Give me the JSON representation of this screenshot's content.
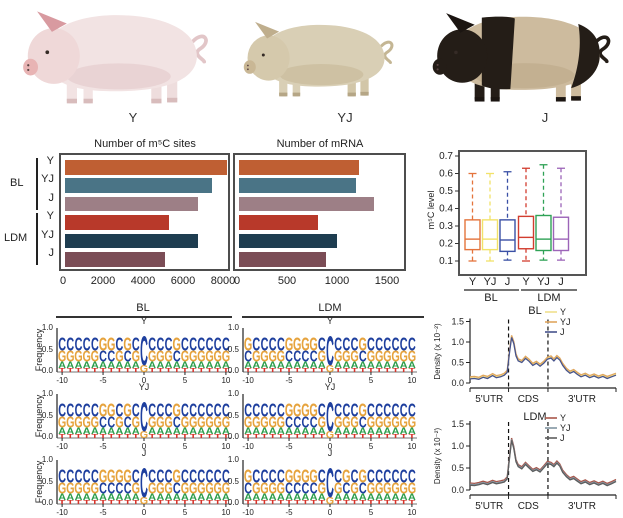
{
  "pigs": {
    "items": [
      {
        "label": "Y",
        "colors": {
          "body": "#f2e3e3",
          "head": "#efd8d8",
          "shade": "#e2c6c8",
          "ear": "#d89aa0",
          "snout": "#e8b4b4",
          "legs_front": "#f2e3e3",
          "legs_rear": "#eedddd",
          "hoof": "#d8bcbc",
          "tail": "#e2c6c8",
          "patched": false
        }
      },
      {
        "label": "YJ",
        "colors": {
          "body": "#d9cfb5",
          "head": "#d5c9ac",
          "shade": "#c4b694",
          "ear": "#bfae8d",
          "snout": "#c9b795",
          "legs_front": "#d9cfb5",
          "legs_rear": "#d2c6a8",
          "hoof": "#b5a686",
          "tail": "#c4b694",
          "patched": false
        }
      },
      {
        "label": "J",
        "colors": {
          "body": "#cdbb9e",
          "head": "#241d17",
          "shade": "#bca887",
          "ear": "#1b1511",
          "snout": "#241d17",
          "legs_front": "#241d17",
          "legs_rear": "#cdbb9e",
          "hoof": "#1b1511",
          "tail": "#241d17",
          "patched": true,
          "patch": "#241d17"
        }
      }
    ]
  },
  "bar_panel": {
    "group_labels": [
      "BL",
      "LDM"
    ],
    "row_labels": [
      "Y",
      "YJ",
      "J"
    ]
  },
  "chart_data": [
    {
      "id": "m5c_sites",
      "type": "bar",
      "orientation": "horizontal",
      "title": "Number of m⁵C sites",
      "groups": [
        "BL",
        "LDM"
      ],
      "categories": [
        "Y",
        "YJ",
        "J",
        "Y",
        "YJ",
        "J"
      ],
      "values": [
        8100,
        7350,
        6650,
        5200,
        6650,
        5000
      ],
      "xlim": [
        0,
        8800
      ],
      "xticks": [
        0,
        2000,
        4000,
        6000,
        8000
      ],
      "bar_colors": [
        "#bf5f33",
        "#4a7486",
        "#9d7f86",
        "#b8392a",
        "#1e3d50",
        "#7b4d56"
      ]
    },
    {
      "id": "mrna",
      "type": "bar",
      "orientation": "horizontal",
      "title": "Number of mRNA",
      "groups": [
        "BL",
        "LDM"
      ],
      "categories": [
        "Y",
        "YJ",
        "J",
        "Y",
        "YJ",
        "J"
      ],
      "values": [
        1200,
        1170,
        1350,
        790,
        980,
        870
      ],
      "xlim": [
        0,
        1600
      ],
      "xticks": [
        0,
        500,
        1000,
        1500
      ],
      "bar_colors": [
        "#bf5f33",
        "#4a7486",
        "#9d7f86",
        "#b8392a",
        "#1e3d50",
        "#7b4d56"
      ]
    },
    {
      "id": "m5c_level",
      "type": "boxplot",
      "ylabel": "m⁵C level",
      "ylim": [
        0.1,
        0.7
      ],
      "yticks": [
        "0.7",
        "0.6",
        "0.5",
        "0.4",
        "0.3",
        "0.2",
        "0.1"
      ],
      "groups": [
        "BL",
        "LDM"
      ],
      "boxes": [
        {
          "group": "BL",
          "label": "Y",
          "color": "#e4743c",
          "lo": 0.1,
          "q1": 0.165,
          "med": 0.225,
          "q3": 0.335,
          "hi": 0.6
        },
        {
          "group": "BL",
          "label": "YJ",
          "color": "#f2e269",
          "lo": 0.1,
          "q1": 0.165,
          "med": 0.225,
          "q3": 0.335,
          "hi": 0.6
        },
        {
          "group": "BL",
          "label": "J",
          "color": "#3a50a5",
          "lo": 0.105,
          "q1": 0.155,
          "med": 0.22,
          "q3": 0.335,
          "hi": 0.61
        },
        {
          "group": "LDM",
          "label": "Y",
          "color": "#d23d2f",
          "lo": 0.1,
          "q1": 0.17,
          "med": 0.235,
          "q3": 0.355,
          "hi": 0.63
        },
        {
          "group": "LDM",
          "label": "YJ",
          "color": "#2fa256",
          "lo": 0.105,
          "q1": 0.16,
          "med": 0.225,
          "q3": 0.36,
          "hi": 0.65
        },
        {
          "group": "LDM",
          "label": "J",
          "color": "#9c64b8",
          "lo": 0.105,
          "q1": 0.16,
          "med": 0.225,
          "q3": 0.35,
          "hi": 0.63
        }
      ]
    },
    {
      "id": "density_bl",
      "type": "line",
      "title": "BL",
      "ylabel": "Density (x 10⁻²)",
      "yticks": [
        "0.0",
        "0.5",
        "1.0",
        "1.5"
      ],
      "regions": [
        "5'UTR",
        "CDS",
        "3'UTR"
      ],
      "boundaries": [
        0.264,
        0.534
      ],
      "series": [
        {
          "name": "Y",
          "color": "#f0df8e",
          "offset": 0
        },
        {
          "name": "YJ",
          "color": "#e0a75f",
          "offset": 0.03
        },
        {
          "name": "J",
          "color": "#46538c",
          "offset": -0.02
        }
      ],
      "points": [
        [
          0,
          0.12
        ],
        [
          0.03,
          0.13
        ],
        [
          0.06,
          0.11
        ],
        [
          0.09,
          0.16
        ],
        [
          0.12,
          0.13
        ],
        [
          0.155,
          0.2
        ],
        [
          0.18,
          0.15
        ],
        [
          0.21,
          0.17
        ],
        [
          0.235,
          0.21
        ],
        [
          0.255,
          0.28
        ],
        [
          0.272,
          0.8
        ],
        [
          0.285,
          1.13
        ],
        [
          0.3,
          0.98
        ],
        [
          0.315,
          0.68
        ],
        [
          0.33,
          0.56
        ],
        [
          0.355,
          0.52
        ],
        [
          0.38,
          0.62
        ],
        [
          0.405,
          0.55
        ],
        [
          0.43,
          0.45
        ],
        [
          0.455,
          0.5
        ],
        [
          0.48,
          0.43
        ],
        [
          0.505,
          0.5
        ],
        [
          0.53,
          0.6
        ],
        [
          0.555,
          0.63
        ],
        [
          0.575,
          0.56
        ],
        [
          0.595,
          0.64
        ],
        [
          0.615,
          0.58
        ],
        [
          0.635,
          0.45
        ],
        [
          0.66,
          0.33
        ],
        [
          0.685,
          0.26
        ],
        [
          0.71,
          0.3
        ],
        [
          0.735,
          0.23
        ],
        [
          0.76,
          0.17
        ],
        [
          0.79,
          0.21
        ],
        [
          0.82,
          0.15
        ],
        [
          0.85,
          0.19
        ],
        [
          0.88,
          0.14
        ],
        [
          0.91,
          0.18
        ],
        [
          0.94,
          0.13
        ],
        [
          0.97,
          0.17
        ],
        [
          1,
          0.21
        ]
      ]
    },
    {
      "id": "density_ldm",
      "type": "line",
      "title": "LDM",
      "ylabel": "Density (x 10⁻²)",
      "yticks": [
        "0.0",
        "0.5",
        "1.0",
        "1.5"
      ],
      "regions": [
        "5'UTR",
        "CDS",
        "3'UTR"
      ],
      "boundaries": [
        0.264,
        0.534
      ],
      "series": [
        {
          "name": "Y",
          "color": "#a8564a",
          "offset": 0.03
        },
        {
          "name": "YJ",
          "color": "#8195a2",
          "offset": 0
        },
        {
          "name": "J",
          "color": "#5d5d5d",
          "offset": -0.02
        }
      ],
      "points": [
        [
          0,
          0.13
        ],
        [
          0.03,
          0.12
        ],
        [
          0.06,
          0.14
        ],
        [
          0.09,
          0.17
        ],
        [
          0.12,
          0.14
        ],
        [
          0.155,
          0.19
        ],
        [
          0.18,
          0.16
        ],
        [
          0.21,
          0.18
        ],
        [
          0.235,
          0.2
        ],
        [
          0.255,
          0.27
        ],
        [
          0.272,
          0.78
        ],
        [
          0.285,
          1.15
        ],
        [
          0.3,
          0.96
        ],
        [
          0.315,
          0.66
        ],
        [
          0.33,
          0.55
        ],
        [
          0.355,
          0.5
        ],
        [
          0.38,
          0.6
        ],
        [
          0.405,
          0.52
        ],
        [
          0.43,
          0.44
        ],
        [
          0.455,
          0.48
        ],
        [
          0.48,
          0.43
        ],
        [
          0.505,
          0.52
        ],
        [
          0.53,
          0.62
        ],
        [
          0.555,
          0.6
        ],
        [
          0.575,
          0.55
        ],
        [
          0.595,
          0.63
        ],
        [
          0.615,
          0.56
        ],
        [
          0.635,
          0.42
        ],
        [
          0.66,
          0.32
        ],
        [
          0.685,
          0.25
        ],
        [
          0.71,
          0.28
        ],
        [
          0.735,
          0.22
        ],
        [
          0.76,
          0.16
        ],
        [
          0.79,
          0.2
        ],
        [
          0.82,
          0.14
        ],
        [
          0.85,
          0.18
        ],
        [
          0.88,
          0.13
        ],
        [
          0.91,
          0.17
        ],
        [
          0.94,
          0.12
        ],
        [
          0.97,
          0.16
        ],
        [
          1,
          0.21
        ]
      ]
    }
  ],
  "logos": {
    "ylabel": "Frequency",
    "yticks": [
      "1.0",
      "0.5",
      "0.0"
    ],
    "xticks": [
      "-10",
      "-5",
      "0",
      "5",
      "10"
    ],
    "letter_colors": {
      "C": "#1e3f9e",
      "G": "#e6a33d",
      "A": "#2d9e4d",
      "T": "#d6332a"
    },
    "center_index": 10,
    "columns": [
      {
        "header": "BL",
        "rows": [
          {
            "title": "Y",
            "top_seq": "CCCCCGGCGCCCCCGCCCCCC"
          },
          {
            "title": "YJ",
            "top_seq": "CCCCCGGCGCCCCCGCCCCCC"
          },
          {
            "title": "J",
            "top_seq": "CCCCCGGGGCCCCCGCCCCCC"
          }
        ]
      },
      {
        "header": "LDM",
        "rows": [
          {
            "title": "Y",
            "top_seq": "GCCCCGGGGCCCCCGCCCCCC"
          },
          {
            "title": "YJ",
            "top_seq": "CCCCCGGGGCCCCCGCCCCCC"
          },
          {
            "title": "J",
            "top_seq": "GCCCCGGGGCCCGCGCCCCCC"
          }
        ]
      }
    ]
  }
}
